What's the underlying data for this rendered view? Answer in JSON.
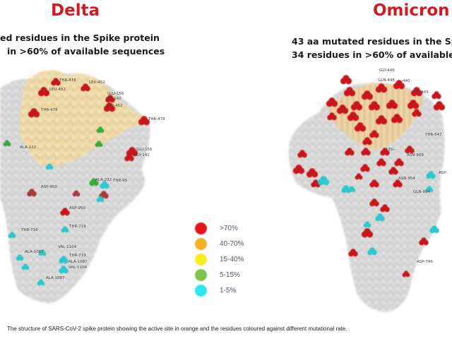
{
  "panels": {
    "delta": {
      "title": "Delta",
      "line1": "ed residues in the Spike protein",
      "line2": "in >60% of available sequences",
      "residue_labels": [
        "THR-478",
        "LEU-452",
        "LEU-452",
        "GLU-156",
        "GLY-142",
        "GLU-452",
        "THR-478",
        "THR-478",
        "ALA-222",
        "GLU-156",
        "GLY-142",
        "ASP-950",
        "ALA-222",
        "THR-95",
        "ASP-950",
        "THR-716",
        "THR-719",
        "VAL-1104",
        "ALA-1087",
        "THR-719",
        "ALA-1087",
        "VAL-1104",
        "ALA-1087"
      ]
    },
    "omicron": {
      "title": "Omicron",
      "line1": "43 aa mutated residues in the Sp",
      "line2": "34 residues in >60% of available",
      "residue_labels": [
        "GLY-446",
        "GLN-498",
        "-440",
        "ASP-405",
        "THR-547",
        "LEU-",
        "ASN-969",
        "ASP-",
        "ASN-954",
        "GLN-954",
        "ASP-796"
      ]
    }
  },
  "legend": {
    "items": [
      {
        "label": ">70%",
        "color": "#e8141a"
      },
      {
        "label": "40-70%",
        "color": "#f5b121"
      },
      {
        "label": "15-40%",
        "color": "#f7ef1d"
      },
      {
        "label": "5-15%",
        "color": "#7fc24a"
      },
      {
        "label": "1-5%",
        "color": "#2ee6ef"
      }
    ]
  },
  "caption": "The structure of SARS-CoV-2 spike protein showing the active site in orange and the residues coloured against different mutational rate."
}
